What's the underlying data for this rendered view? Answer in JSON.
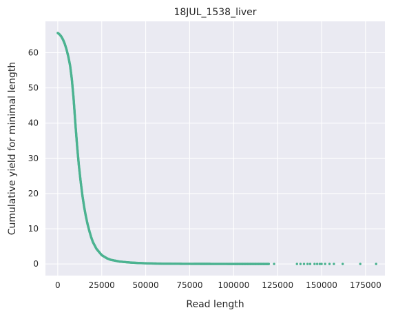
{
  "chart_data": {
    "type": "scatter",
    "title": "18JUL_1538_liver",
    "xlabel": "Read length",
    "ylabel": "Cumulative yield for minimal length",
    "xlim": [
      -7000,
      186000
    ],
    "ylim": [
      -3.3,
      68.9
    ],
    "xticks": [
      0,
      25000,
      50000,
      75000,
      100000,
      125000,
      150000,
      175000
    ],
    "yticks": [
      0,
      10,
      20,
      30,
      40,
      50,
      60
    ],
    "grid": true,
    "background": "#eaeaf2",
    "grid_color": "#ffffff",
    "point_color": "#4cb391",
    "series": [
      {
        "curve_points": [
          [
            0,
            65.6
          ],
          [
            1000,
            65.2
          ],
          [
            2000,
            64.6
          ],
          [
            3000,
            63.7
          ],
          [
            4000,
            62.5
          ],
          [
            5000,
            60.9
          ],
          [
            6000,
            58.9
          ],
          [
            7000,
            56.4
          ],
          [
            8000,
            52.5
          ],
          [
            9000,
            47.0
          ],
          [
            10000,
            40.0
          ],
          [
            11000,
            33.5
          ],
          [
            12000,
            28.0
          ],
          [
            13000,
            23.5
          ],
          [
            14000,
            19.5
          ],
          [
            15000,
            16.2
          ],
          [
            16000,
            13.5
          ],
          [
            17000,
            11.2
          ],
          [
            18000,
            9.3
          ],
          [
            19000,
            7.6
          ],
          [
            20000,
            6.2
          ],
          [
            22000,
            4.3
          ],
          [
            25000,
            2.5
          ],
          [
            28000,
            1.6
          ],
          [
            30000,
            1.2
          ],
          [
            35000,
            0.7
          ],
          [
            40000,
            0.45
          ],
          [
            45000,
            0.3
          ],
          [
            50000,
            0.2
          ],
          [
            55000,
            0.13
          ],
          [
            60000,
            0.09
          ],
          [
            70000,
            0.05
          ],
          [
            80000,
            0.03
          ],
          [
            90000,
            0.02
          ],
          [
            100000,
            0.01
          ],
          [
            110000,
            0.006
          ],
          [
            120000,
            0.003
          ]
        ],
        "outlier_x": [
          101000,
          102000,
          103500,
          105000,
          106500,
          108000,
          109500,
          111000,
          112500,
          114000,
          115500,
          117000,
          119500,
          123000,
          136000,
          138000,
          140000,
          142000,
          143500,
          146000,
          147500,
          149000,
          150000,
          152000,
          154500,
          157000,
          162000,
          172000,
          181000
        ],
        "outlier_y": 0
      }
    ]
  }
}
